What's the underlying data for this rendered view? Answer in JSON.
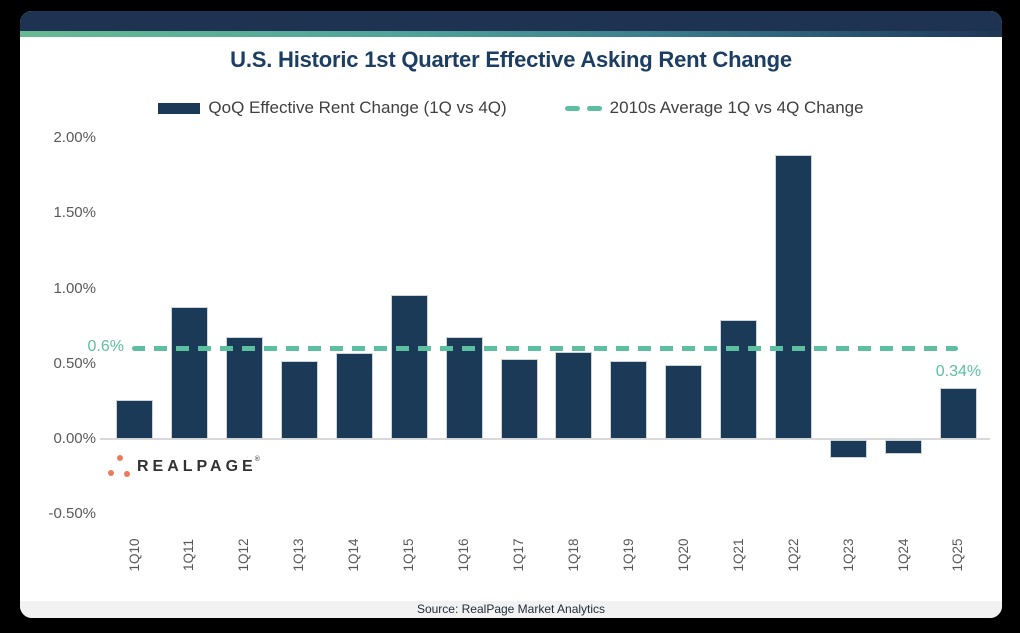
{
  "title": "U.S. Historic 1st Quarter Effective Asking Rent Change",
  "legend": {
    "items": [
      {
        "label": "QoQ Effective Rent Change (1Q vs 4Q)",
        "swatch": "bar",
        "color": "#1b3a58"
      },
      {
        "label": "2010s Average 1Q vs 4Q Change",
        "swatch": "dashed-line",
        "color": "#5cc0a0"
      }
    ]
  },
  "chart_data": {
    "type": "bar",
    "title": "U.S. Historic 1st Quarter Effective Asking Rent Change",
    "categories": [
      "1Q10",
      "1Q11",
      "1Q12",
      "1Q13",
      "1Q14",
      "1Q15",
      "1Q16",
      "1Q17",
      "1Q18",
      "1Q19",
      "1Q20",
      "1Q21",
      "1Q22",
      "1Q23",
      "1Q24",
      "1Q25"
    ],
    "series": [
      {
        "name": "QoQ Effective Rent Change (1Q vs 4Q)",
        "color": "#1b3a58",
        "values": [
          0.26,
          0.88,
          0.68,
          0.52,
          0.57,
          0.96,
          0.68,
          0.53,
          0.58,
          0.52,
          0.49,
          0.79,
          1.89,
          -0.12,
          -0.09,
          0.34
        ]
      }
    ],
    "reference_line": {
      "name": "2010s Average 1Q vs 4Q Change",
      "value": 0.6,
      "label": "0.6%",
      "style": "dashed",
      "color": "#5cc0a0"
    },
    "annotations": [
      {
        "category": "1Q25",
        "text": "0.34%"
      }
    ],
    "y_ticks": [
      "2.00%",
      "1.50%",
      "1.00%",
      "0.50%",
      "0.00%",
      "-0.50%"
    ],
    "ylim": [
      -0.5,
      2.0
    ],
    "unit": "percent",
    "grid": "none",
    "legend_position": "top",
    "x_label_rotation": -90
  },
  "logo": {
    "text": "REALPAGE",
    "registered_mark": "®",
    "dot_color": "#ec7b5c"
  },
  "footer": {
    "text": "Source: RealPage Market Analytics"
  },
  "colors": {
    "background": "#000000",
    "card": "#ffffff",
    "header_bar": "#1e3352",
    "gradient_left": "#66bb92",
    "gradient_right": "#1f3655",
    "bar": "#1b3a58",
    "teal_accent": "#5cc0a0",
    "title_text": "#1c3e63",
    "axis_text": "#595959",
    "footer_bg": "#f2f2f2"
  }
}
